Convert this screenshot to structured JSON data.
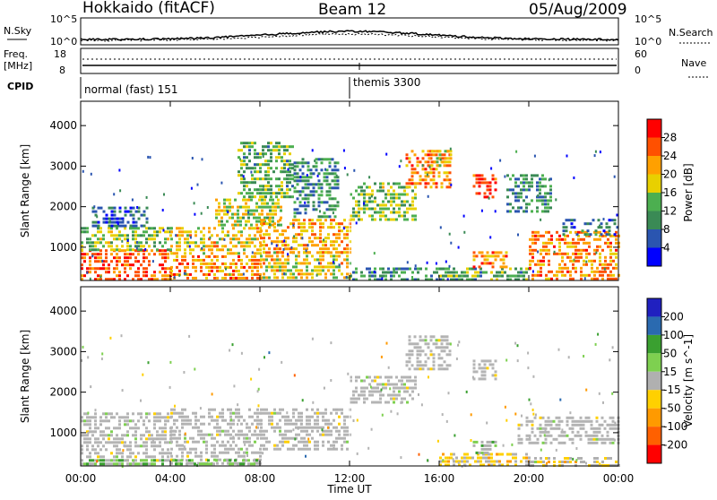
{
  "header": {
    "station": "Hokkaido (fitACF)",
    "beam": "Beam 12",
    "date": "05/Aug/2009"
  },
  "top_panels": {
    "nsky_label": "N.Sky",
    "nsearch_label": "N.Search",
    "freq_label_1": "Freq.",
    "freq_label_2": "[MHz]",
    "nave_label": "Nave",
    "cpid_label": "CPID",
    "nsky_ticks": [
      "10^5",
      "10^0"
    ],
    "nsearch_ticks": [
      "10^5",
      "10^0"
    ],
    "freq_ticks": [
      "18",
      "8"
    ],
    "nave_ticks": [
      "60",
      "0"
    ],
    "cpid_modes": [
      "normal (fast) 151",
      "themis 3300"
    ]
  },
  "colors": {
    "power": [
      "#0000ff",
      "#2a55b0",
      "#3a8a55",
      "#4caf50",
      "#e8d000",
      "#ffa000",
      "#ff5000",
      "#ff0000"
    ],
    "velocity": [
      "#ff0000",
      "#ff6000",
      "#ff9a00",
      "#ffd000",
      "#b0b0b0",
      "#7ed050",
      "#3aa030",
      "#2a6ab0",
      "#2020c0"
    ],
    "ground_scatter": "#b4b4b4"
  },
  "chart_data": [
    {
      "type": "heatmap",
      "panel": "power",
      "ylabel": "Slant Range [km]",
      "ylim": [
        180,
        4600
      ],
      "y_ticks": [
        "4000",
        "3000",
        "2000",
        "1000"
      ],
      "x_ticks": [
        "00:00",
        "04:00",
        "08:00",
        "12:00",
        "16:00",
        "20:00",
        "00:00"
      ],
      "xlim_hours": [
        0,
        24
      ],
      "colorbar_label": "Power [dB]",
      "colorbar_ticks": [
        "28",
        "24",
        "20",
        "16",
        "12",
        "8",
        "4"
      ],
      "colorbar_range": [
        0,
        30
      ],
      "regions": [
        {
          "t0": 0.0,
          "t1": 4.0,
          "r0": 200,
          "r1": 950,
          "value": 24
        },
        {
          "t0": 0.0,
          "t1": 4.0,
          "r0": 950,
          "r1": 1500,
          "value": 14
        },
        {
          "t0": 0.5,
          "t1": 3.0,
          "r0": 1500,
          "r1": 2000,
          "value": 6
        },
        {
          "t0": 4.0,
          "t1": 8.0,
          "r0": 200,
          "r1": 800,
          "value": 22
        },
        {
          "t0": 4.0,
          "t1": 8.0,
          "r0": 800,
          "r1": 1500,
          "value": 18
        },
        {
          "t0": 6.0,
          "t1": 9.0,
          "r0": 1500,
          "r1": 2200,
          "value": 16
        },
        {
          "t0": 7.0,
          "t1": 9.5,
          "r0": 2200,
          "r1": 3600,
          "value": 12
        },
        {
          "t0": 8.0,
          "t1": 12.0,
          "r0": 200,
          "r1": 900,
          "value": 18
        },
        {
          "t0": 8.0,
          "t1": 12.0,
          "r0": 900,
          "r1": 1700,
          "value": 20
        },
        {
          "t0": 9.5,
          "t1": 11.5,
          "r0": 1700,
          "r1": 3200,
          "value": 10
        },
        {
          "t0": 12.0,
          "t1": 16.0,
          "r0": 200,
          "r1": 500,
          "value": 10
        },
        {
          "t0": 12.0,
          "t1": 15.0,
          "r0": 1700,
          "r1": 2600,
          "value": 14
        },
        {
          "t0": 14.5,
          "t1": 16.5,
          "r0": 2500,
          "r1": 3400,
          "value": 22
        },
        {
          "t0": 15.5,
          "t1": 16.5,
          "r0": 3000,
          "r1": 3400,
          "value": 18
        },
        {
          "t0": 17.5,
          "t1": 18.5,
          "r0": 2200,
          "r1": 2800,
          "value": 26
        },
        {
          "t0": 16.0,
          "t1": 20.0,
          "r0": 200,
          "r1": 500,
          "value": 12
        },
        {
          "t0": 17.5,
          "t1": 19.0,
          "r0": 500,
          "r1": 900,
          "value": 22
        },
        {
          "t0": 19.0,
          "t1": 21.0,
          "r0": 1900,
          "r1": 2800,
          "value": 10
        },
        {
          "t0": 20.0,
          "t1": 24.0,
          "r0": 200,
          "r1": 1400,
          "value": 22
        },
        {
          "t0": 21.5,
          "t1": 24.0,
          "r0": 1300,
          "r1": 1700,
          "value": 8
        }
      ]
    },
    {
      "type": "heatmap",
      "panel": "velocity",
      "ylabel": "Slant Range [km]",
      "ylim": [
        180,
        4600
      ],
      "y_ticks": [
        "4000",
        "3000",
        "2000",
        "1000"
      ],
      "x_ticks": [
        "00:00",
        "04:00",
        "08:00",
        "12:00",
        "16:00",
        "20:00",
        "00:00"
      ],
      "xlabel": "Time UT",
      "xlim_hours": [
        0,
        24
      ],
      "colorbar_label": "Velocity [m s^-1]",
      "colorbar_ticks": [
        "200",
        "100",
        "50",
        "15",
        "-15",
        "-50",
        "-100",
        "-200"
      ],
      "colorbar_range": [
        -250,
        250
      ],
      "regions": [
        {
          "t0": 0.0,
          "t1": 4.0,
          "r0": 200,
          "r1": 1500,
          "value": 0,
          "ground": true
        },
        {
          "t0": 4.0,
          "t1": 8.0,
          "r0": 200,
          "r1": 1600,
          "value": 0,
          "ground": true
        },
        {
          "t0": 8.0,
          "t1": 12.0,
          "r0": 600,
          "r1": 1600,
          "value": 0,
          "ground": true
        },
        {
          "t0": 12.0,
          "t1": 15.0,
          "r0": 1700,
          "r1": 2400,
          "value": 0,
          "ground": true
        },
        {
          "t0": 14.5,
          "t1": 16.5,
          "r0": 2600,
          "r1": 3400,
          "value": 0,
          "ground": true
        },
        {
          "t0": 17.5,
          "t1": 18.5,
          "r0": 2300,
          "r1": 2800,
          "value": 0,
          "ground": true
        },
        {
          "t0": 19.5,
          "t1": 24.0,
          "r0": 700,
          "r1": 1400,
          "value": 0,
          "ground": true
        },
        {
          "t0": 0.0,
          "t1": 8.0,
          "r0": 200,
          "r1": 350,
          "value": 60
        },
        {
          "t0": 16.0,
          "t1": 20.0,
          "r0": 200,
          "r1": 500,
          "value": -40
        },
        {
          "t0": 17.5,
          "t1": 18.5,
          "r0": 500,
          "r1": 800,
          "value": 40
        },
        {
          "t0": 20.0,
          "t1": 24.0,
          "r0": 200,
          "r1": 400,
          "value": -30
        }
      ]
    }
  ]
}
